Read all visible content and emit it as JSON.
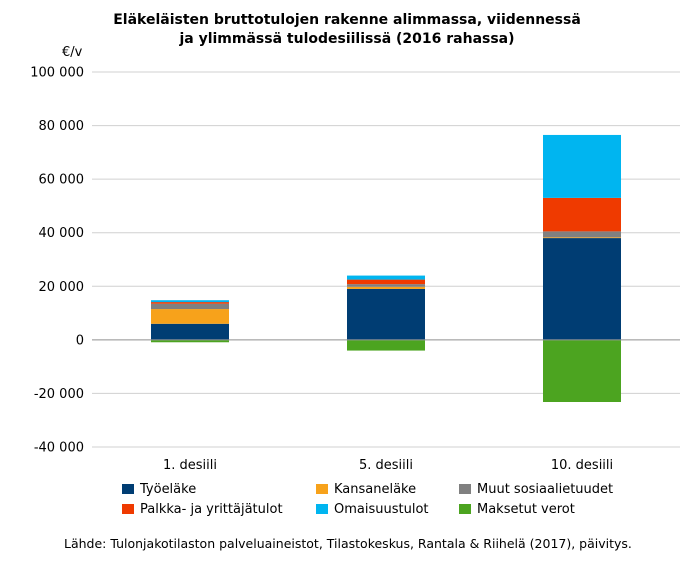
{
  "chart_data": {
    "type": "bar",
    "stacked": true,
    "title_lines": [
      "Eläkeläisten bruttotulojen rakenne alimmassa, viidennessä",
      "ja ylimmässä tulodesiilissä (2016 rahassa)"
    ],
    "unit_label": "€/v",
    "categories": [
      "1. desiili",
      "5. desiili",
      "10. desiili"
    ],
    "ylim": [
      -40000,
      100000
    ],
    "yticks": [
      {
        "value": 100000,
        "label": "100 000"
      },
      {
        "value": 80000,
        "label": "80 000"
      },
      {
        "value": 60000,
        "label": "60 000"
      },
      {
        "value": 40000,
        "label": "40 000"
      },
      {
        "value": 20000,
        "label": "20 000"
      },
      {
        "value": 0,
        "label": "0"
      },
      {
        "value": -20000,
        "label": "-20 000"
      },
      {
        "value": -40000,
        "label": "-40 000"
      }
    ],
    "grid": true,
    "legend_position": "bottom",
    "series": [
      {
        "name": "Työeläke",
        "color": "#003d73",
        "values": [
          6000,
          19000,
          38000
        ]
      },
      {
        "name": "Kansaneläke",
        "color": "#f7a21b",
        "values": [
          5500,
          800,
          300
        ]
      },
      {
        "name": "Muut sosiaalietuudet",
        "color": "#808080",
        "values": [
          2000,
          1000,
          2200
        ]
      },
      {
        "name": "Palkka- ja yrittäjätulot",
        "color": "#ef3a00",
        "values": [
          600,
          1700,
          12500
        ]
      },
      {
        "name": "Omaisuustulot",
        "color": "#00b5f0",
        "values": [
          700,
          1500,
          23500
        ]
      },
      {
        "name": "Maksetut verot",
        "color": "#4ca420",
        "values": [
          -900,
          -4000,
          -23200
        ]
      }
    ]
  },
  "source_text": "Lähde: Tulonjakotilaston palveluaineistot, Tilastokeskus, Rantala & Riihelä (2017), päivitys."
}
